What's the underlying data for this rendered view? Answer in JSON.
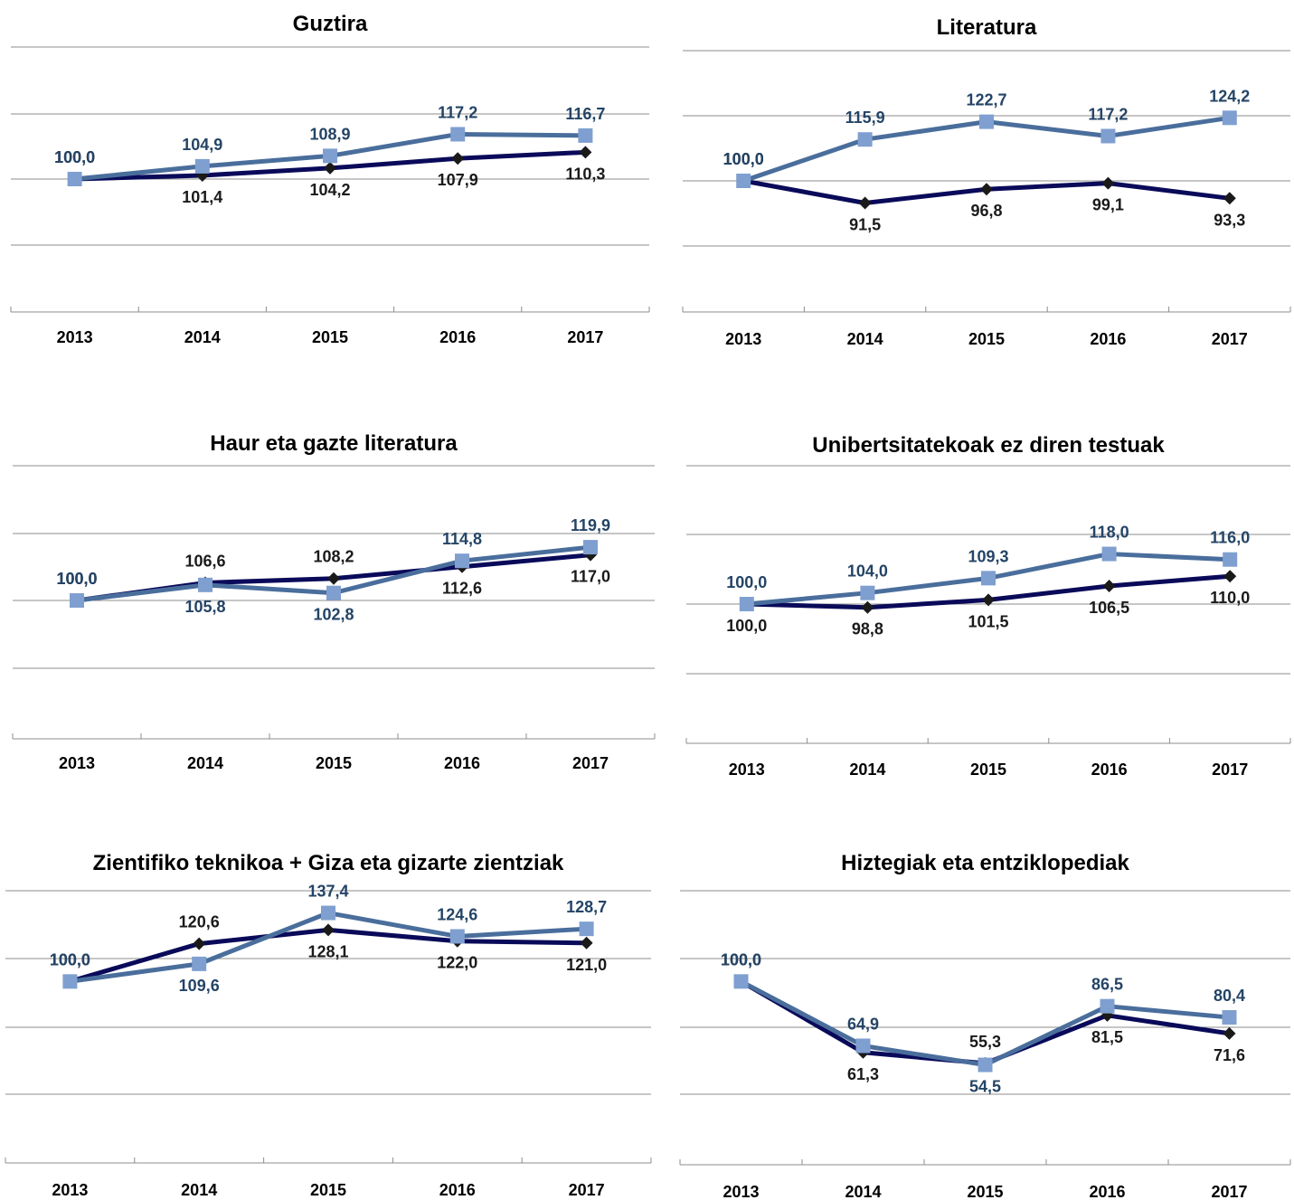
{
  "colors": {
    "series_dark": "#0a0a5a",
    "series_light": "#4a6e9c",
    "marker_light": "#7f9fd0",
    "label_light": "#244466",
    "label_dark": "#1a1a1a"
  },
  "chart_data": [
    {
      "type": "line",
      "title": "Guztira",
      "categories": [
        "2013",
        "2014",
        "2015",
        "2016",
        "2017"
      ],
      "ylim": [
        50,
        150
      ],
      "grid": true,
      "series": [
        {
          "values": [
            100.0,
            101.4,
            104.2,
            107.9,
            110.3
          ],
          "labels": [
            "100,0",
            "101,4",
            "104,2",
            "107,9",
            "110,3"
          ]
        },
        {
          "values": [
            100.0,
            104.9,
            108.9,
            117.2,
            116.7
          ],
          "labels": [
            "100,0",
            "104,9",
            "108,9",
            "117,2",
            "116,7"
          ]
        }
      ]
    },
    {
      "type": "line",
      "title": "Literatura",
      "categories": [
        "2013",
        "2014",
        "2015",
        "2016",
        "2017"
      ],
      "ylim": [
        50,
        150
      ],
      "grid": true,
      "series": [
        {
          "values": [
            100.0,
            91.5,
            96.8,
            99.1,
            93.3
          ],
          "labels": [
            "100,0",
            "91,5",
            "96,8",
            "99,1",
            "93,3"
          ]
        },
        {
          "values": [
            100.0,
            115.9,
            122.7,
            117.2,
            124.2
          ],
          "labels": [
            "100,0",
            "115,9",
            "122,7",
            "117,2",
            "124,2"
          ]
        }
      ]
    },
    {
      "type": "line",
      "title": "Haur eta gazte literatura",
      "categories": [
        "2013",
        "2014",
        "2015",
        "2016",
        "2017"
      ],
      "ylim": [
        50,
        150
      ],
      "grid": true,
      "series": [
        {
          "values": [
            100.0,
            106.6,
            108.2,
            112.6,
            117.0
          ],
          "labels": [
            "100,0",
            "106,6",
            "108,2",
            "112,6",
            "117,0"
          ]
        },
        {
          "values": [
            100.0,
            105.8,
            102.8,
            114.8,
            119.9
          ],
          "labels": [
            "100,0",
            "105,8",
            "102,8",
            "114,8",
            "119,9"
          ]
        }
      ]
    },
    {
      "type": "line",
      "title": "Unibertsitatekoak ez diren testuak",
      "categories": [
        "2013",
        "2014",
        "2015",
        "2016",
        "2017"
      ],
      "ylim": [
        50,
        150
      ],
      "grid": true,
      "series": [
        {
          "values": [
            100.0,
            98.8,
            101.5,
            106.5,
            110.0
          ],
          "labels": [
            "100,0",
            "98,8",
            "101,5",
            "106,5",
            "110,0"
          ]
        },
        {
          "values": [
            100.0,
            104.0,
            109.3,
            118.0,
            116.0
          ],
          "labels": [
            "100,0",
            "104,0",
            "109,3",
            "118,0",
            "116,0"
          ]
        }
      ]
    },
    {
      "type": "line",
      "title": "Zientifiko teknikoa + Giza eta gizarte zientziak",
      "categories": [
        "2013",
        "2014",
        "2015",
        "2016",
        "2017"
      ],
      "ylim": [
        0,
        150
      ],
      "grid": true,
      "series": [
        {
          "values": [
            100.0,
            120.6,
            128.1,
            122.0,
            121.0
          ],
          "labels": [
            "100,0",
            "120,6",
            "128,1",
            "122,0",
            "121,0"
          ]
        },
        {
          "values": [
            100.0,
            109.6,
            137.4,
            124.6,
            128.7
          ],
          "labels": [
            "100,0",
            "109,6",
            "137,4",
            "124,6",
            "128,7"
          ]
        }
      ]
    },
    {
      "type": "line",
      "title": "Hiztegiak eta entziklopediak",
      "categories": [
        "2013",
        "2014",
        "2015",
        "2016",
        "2017"
      ],
      "ylim": [
        0,
        150
      ],
      "grid": true,
      "series": [
        {
          "values": [
            100.0,
            61.3,
            55.3,
            81.5,
            71.6
          ],
          "labels": [
            "100,0",
            "61,3",
            "55,3",
            "81,5",
            "71,6"
          ]
        },
        {
          "values": [
            100.0,
            64.9,
            54.5,
            86.5,
            80.4
          ],
          "labels": [
            "100,0",
            "64,9",
            "54,5",
            "86,5",
            "80,4"
          ]
        }
      ]
    }
  ]
}
